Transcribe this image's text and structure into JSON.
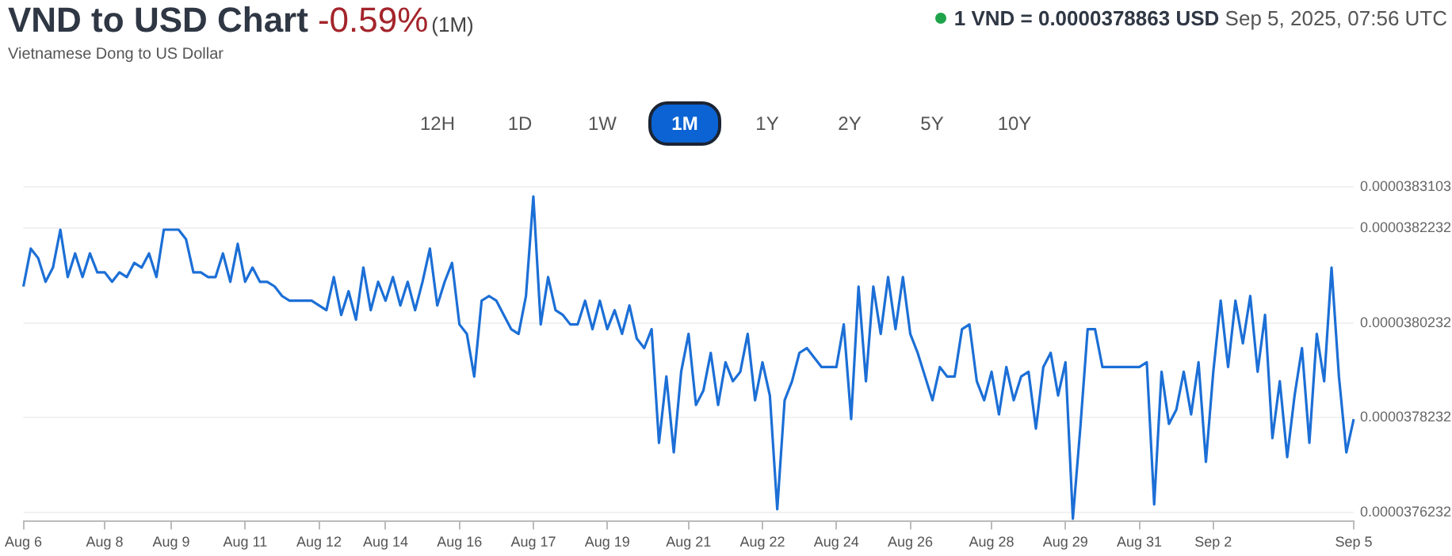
{
  "chart_data": {
    "type": "line",
    "title": "VND to USD Chart",
    "subtitle": "Vietnamese Dong to US Dollar",
    "annotations": [
      "-0.59%",
      "(1M)",
      "1 VND = 0.0000378863 USD",
      "Sep 5, 2025, 07:56 UTC",
      "12H",
      "1D",
      "1W",
      "1M",
      "1Y",
      "2Y",
      "5Y",
      "10Y"
    ],
    "categories": [
      "Aug 6",
      null,
      null,
      null,
      null,
      null,
      null,
      null,
      null,
      null,
      null,
      "Aug 8",
      null,
      null,
      null,
      null,
      null,
      null,
      null,
      null,
      "Aug 9",
      null,
      null,
      null,
      null,
      null,
      null,
      null,
      null,
      null,
      "Aug 11",
      null,
      null,
      null,
      null,
      null,
      null,
      null,
      null,
      null,
      "Aug 12",
      null,
      null,
      null,
      null,
      null,
      null,
      null,
      null,
      "Aug 14",
      null,
      null,
      null,
      null,
      null,
      null,
      null,
      null,
      null,
      "Aug 16",
      null,
      null,
      null,
      null,
      null,
      null,
      null,
      null,
      null,
      "Aug 17",
      null,
      null,
      null,
      null,
      null,
      null,
      null,
      null,
      null,
      "Aug 19",
      null,
      null,
      null,
      null,
      null,
      null,
      null,
      null,
      null,
      null,
      "Aug 21",
      null,
      null,
      null,
      null,
      null,
      null,
      null,
      null,
      null,
      "Aug 22",
      null,
      null,
      null,
      null,
      null,
      null,
      null,
      null,
      null,
      "Aug 24",
      null,
      null,
      null,
      null,
      null,
      null,
      null,
      null,
      null,
      "Aug 26",
      null,
      null,
      null,
      null,
      null,
      null,
      null,
      null,
      null,
      null,
      "Aug 28",
      null,
      null,
      null,
      null,
      null,
      null,
      null,
      null,
      null,
      "Aug 29",
      null,
      null,
      null,
      null,
      null,
      null,
      null,
      null,
      null,
      "Aug 31",
      null,
      null,
      null,
      null,
      null,
      null,
      null,
      null,
      null,
      "Sep 2",
      null,
      null,
      null,
      null,
      null,
      null,
      null,
      null,
      null,
      null,
      null,
      null,
      null,
      null,
      null,
      null,
      null,
      null,
      "Sep 5"
    ],
    "series": [
      {
        "color": "#1c6fd6",
        "values": [
          3.81e-05,
          3.818e-05,
          3.816e-05,
          3.811e-05,
          3.814e-05,
          3.822e-05,
          3.812e-05,
          3.817e-05,
          3.812e-05,
          3.817e-05,
          3.813e-05,
          3.813e-05,
          3.811e-05,
          3.813e-05,
          3.812e-05,
          3.815e-05,
          3.814e-05,
          3.817e-05,
          3.812e-05,
          3.822e-05,
          3.822e-05,
          3.822e-05,
          3.82e-05,
          3.813e-05,
          3.813e-05,
          3.812e-05,
          3.812e-05,
          3.817e-05,
          3.811e-05,
          3.819e-05,
          3.811e-05,
          3.814e-05,
          3.811e-05,
          3.811e-05,
          3.81e-05,
          3.808e-05,
          3.807e-05,
          3.807e-05,
          3.807e-05,
          3.807e-05,
          3.806e-05,
          3.805e-05,
          3.812e-05,
          3.804e-05,
          3.809e-05,
          3.803e-05,
          3.814e-05,
          3.805e-05,
          3.811e-05,
          3.807e-05,
          3.812e-05,
          3.806e-05,
          3.811e-05,
          3.805e-05,
          3.811e-05,
          3.818e-05,
          3.806e-05,
          3.811e-05,
          3.815e-05,
          3.802e-05,
          3.8e-05,
          3.791e-05,
          3.807e-05,
          3.808e-05,
          3.807e-05,
          3.804e-05,
          3.801e-05,
          3.8e-05,
          3.808e-05,
          3.829e-05,
          3.802e-05,
          3.812e-05,
          3.805e-05,
          3.804e-05,
          3.802e-05,
          3.802e-05,
          3.807e-05,
          3.801e-05,
          3.807e-05,
          3.801e-05,
          3.805e-05,
          3.8e-05,
          3.806e-05,
          3.799e-05,
          3.797e-05,
          3.801e-05,
          3.777e-05,
          3.791e-05,
          3.775e-05,
          3.792e-05,
          3.8e-05,
          3.785e-05,
          3.788e-05,
          3.796e-05,
          3.785e-05,
          3.794e-05,
          3.79e-05,
          3.792e-05,
          3.8e-05,
          3.786e-05,
          3.794e-05,
          3.787e-05,
          3.763e-05,
          3.786e-05,
          3.79e-05,
          3.796e-05,
          3.797e-05,
          3.795e-05,
          3.793e-05,
          3.793e-05,
          3.793e-05,
          3.802e-05,
          3.782e-05,
          3.81e-05,
          3.79e-05,
          3.81e-05,
          3.8e-05,
          3.812e-05,
          3.801e-05,
          3.812e-05,
          3.8e-05,
          3.796e-05,
          3.791e-05,
          3.786e-05,
          3.793e-05,
          3.791e-05,
          3.791e-05,
          3.801e-05,
          3.802e-05,
          3.79e-05,
          3.786e-05,
          3.792e-05,
          3.783e-05,
          3.793e-05,
          3.786e-05,
          3.791e-05,
          3.792e-05,
          3.78e-05,
          3.793e-05,
          3.796e-05,
          3.787e-05,
          3.794e-05,
          3.761e-05,
          3.78e-05,
          3.801e-05,
          3.801e-05,
          3.793e-05,
          3.793e-05,
          3.793e-05,
          3.793e-05,
          3.793e-05,
          3.793e-05,
          3.794e-05,
          3.764e-05,
          3.792e-05,
          3.781e-05,
          3.784e-05,
          3.792e-05,
          3.783e-05,
          3.794e-05,
          3.773e-05,
          3.792e-05,
          3.807e-05,
          3.793e-05,
          3.807e-05,
          3.798e-05,
          3.808e-05,
          3.792e-05,
          3.804e-05,
          3.778e-05,
          3.79e-05,
          3.774e-05,
          3.787e-05,
          3.797e-05,
          3.777e-05,
          3.8e-05,
          3.79e-05,
          3.814e-05,
          3.791e-05,
          3.775e-05,
          3.782e-05
        ]
      }
    ],
    "ylim": [
      3.7604e-05,
      3.83103e-05
    ],
    "yticks": [
      {
        "value": 3.76232e-05,
        "label": "0.0000376232"
      },
      {
        "value": 3.78232e-05,
        "label": "0.0000378232"
      },
      {
        "value": 3.80232e-05,
        "label": "0.0000380232"
      },
      {
        "value": 3.82232e-05,
        "label": "0.0000382232"
      },
      {
        "value": 3.83103e-05,
        "label": "0.0000383103"
      }
    ],
    "grid": "y",
    "legend": false
  }
}
